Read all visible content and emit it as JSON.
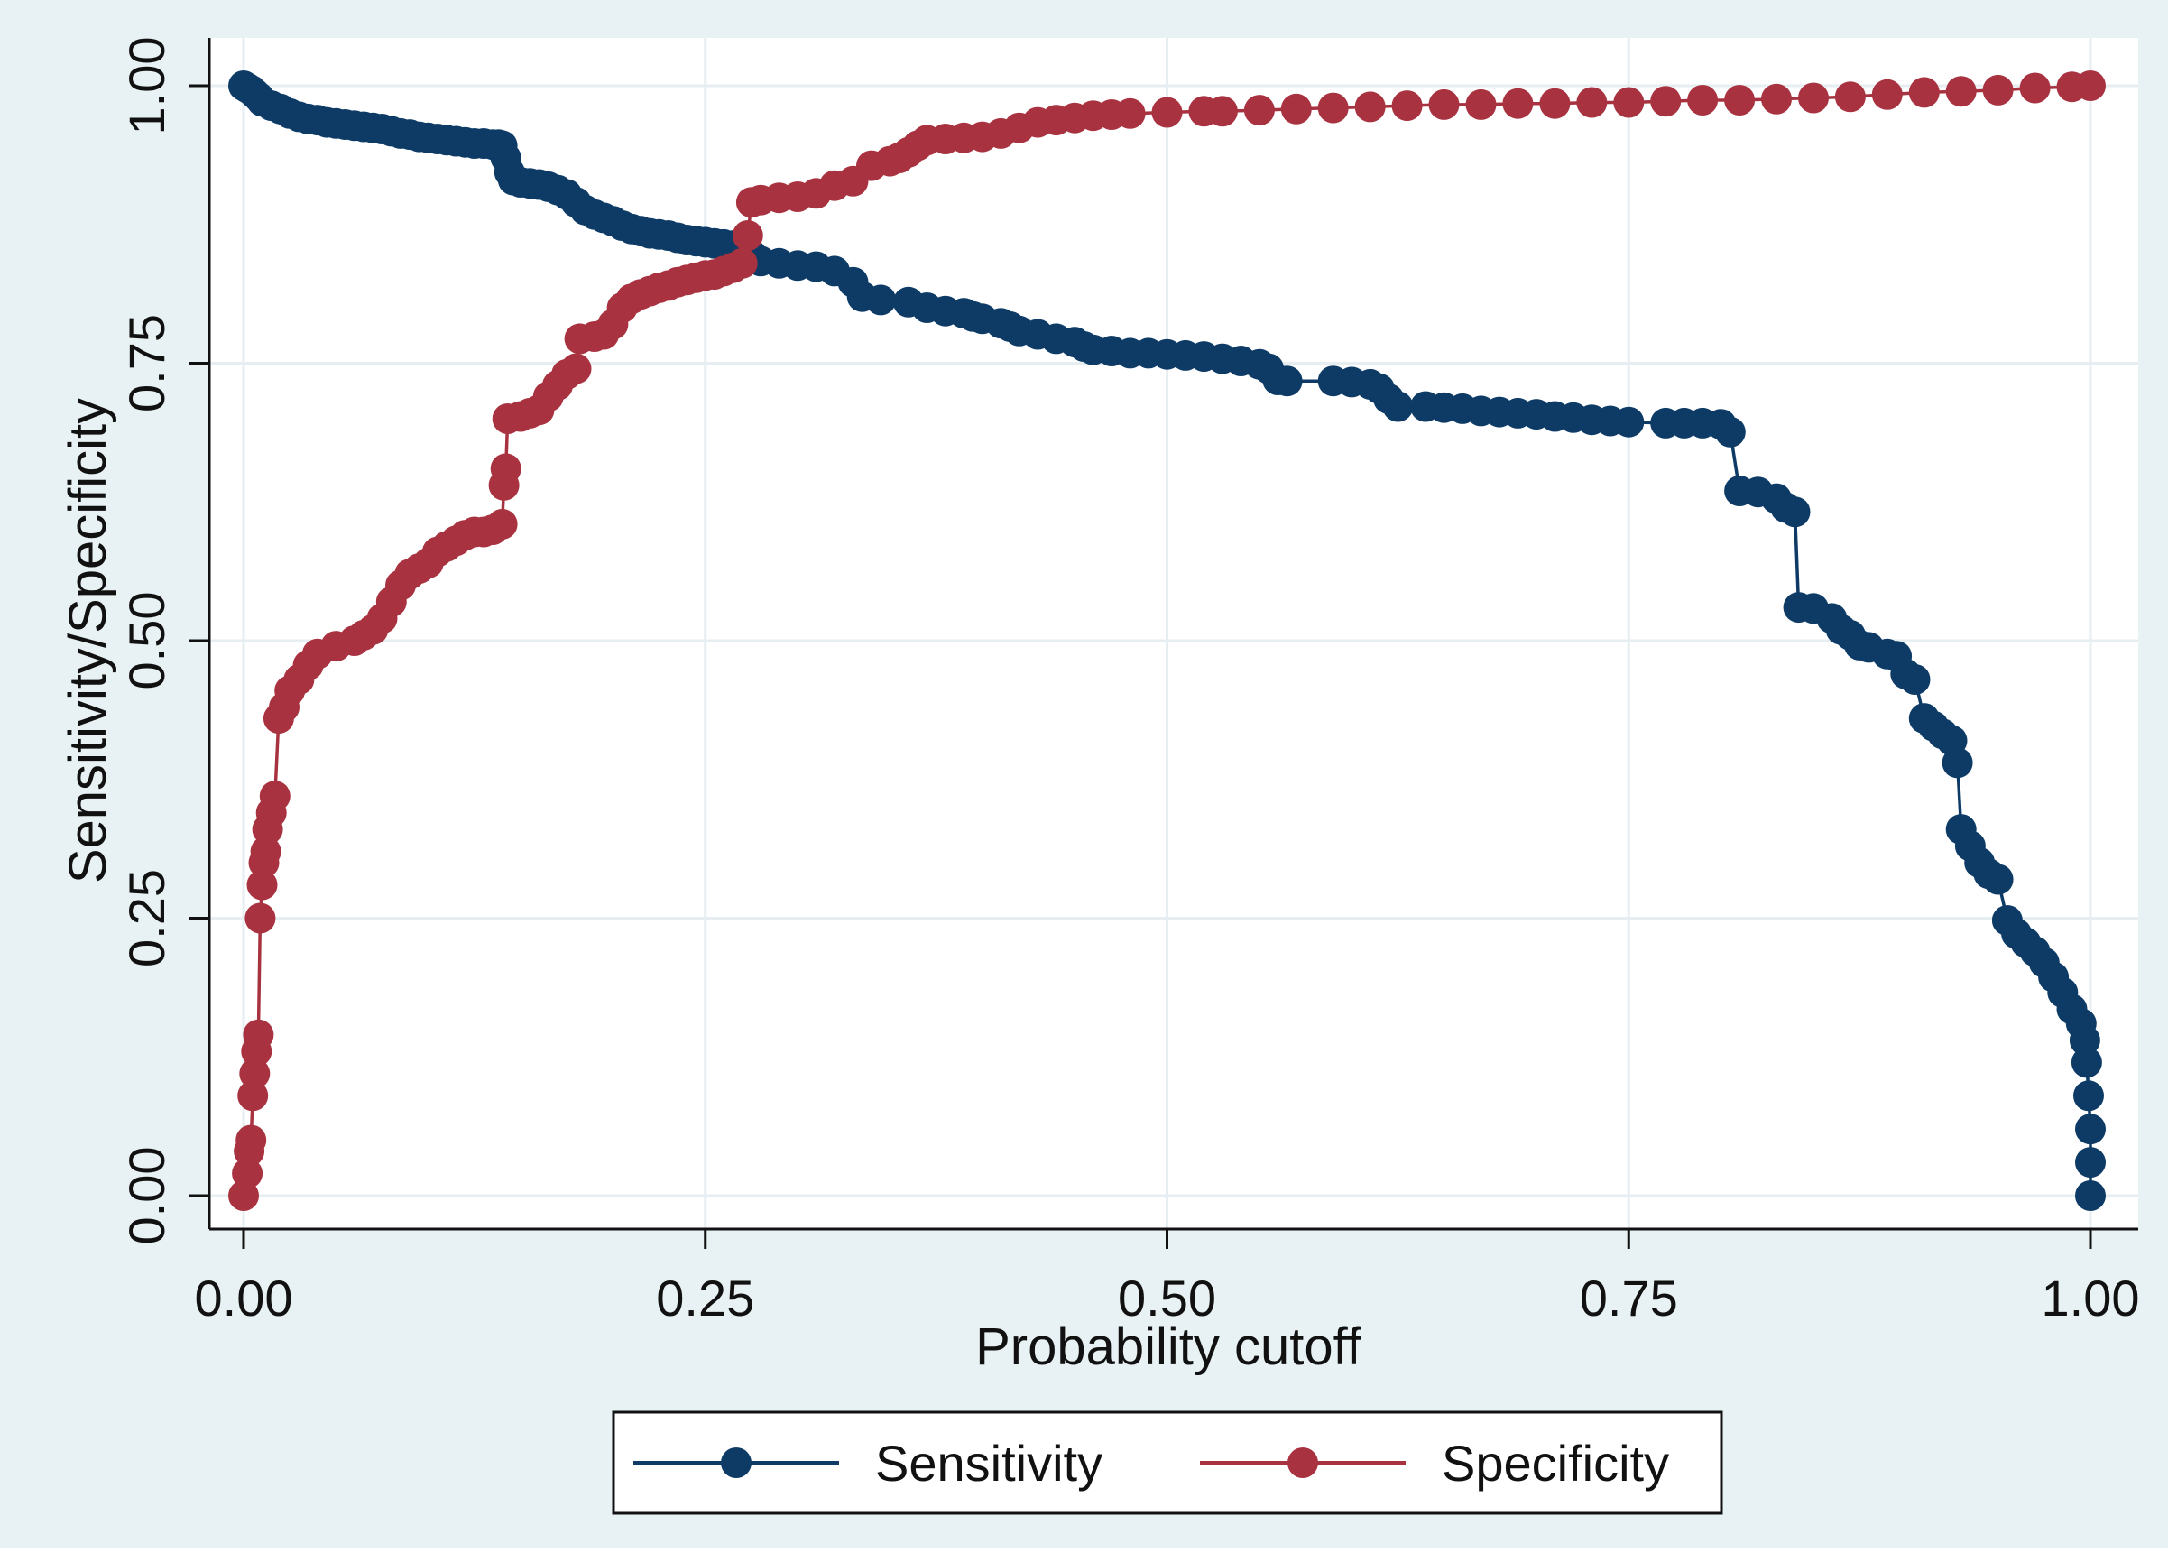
{
  "chart_data": {
    "type": "line",
    "title": "",
    "xlabel": "Probability cutoff",
    "ylabel": "Sensitivity/Specificity",
    "xlim": [
      0,
      1
    ],
    "ylim": [
      0,
      1
    ],
    "x_ticks": [
      0,
      0.25,
      0.5,
      0.75,
      1
    ],
    "x_tick_labels": [
      "0.00",
      "0.25",
      "0.50",
      "0.75",
      "1.00"
    ],
    "y_ticks": [
      0,
      0.25,
      0.5,
      0.75,
      1
    ],
    "y_tick_labels": [
      "0.00",
      "0.25",
      "0.50",
      "0.75",
      "1.00"
    ],
    "grid": true,
    "legend_position": "bottom",
    "colors": {
      "outer_background": "#e8f1f3",
      "plot_background": "#ffffff",
      "grid": "#e6eef1",
      "axis": "#111111"
    },
    "series": [
      {
        "name": "Sensitivity",
        "color": "#0d3b66",
        "points": [
          [
            0.0,
            1.0
          ],
          [
            0.002,
            0.998
          ],
          [
            0.004,
            0.996
          ],
          [
            0.006,
            0.993
          ],
          [
            0.008,
            0.99
          ],
          [
            0.01,
            0.986
          ],
          [
            0.015,
            0.982
          ],
          [
            0.02,
            0.979
          ],
          [
            0.025,
            0.975
          ],
          [
            0.03,
            0.972
          ],
          [
            0.035,
            0.97
          ],
          [
            0.04,
            0.969
          ],
          [
            0.045,
            0.967
          ],
          [
            0.05,
            0.966
          ],
          [
            0.055,
            0.965
          ],
          [
            0.06,
            0.964
          ],
          [
            0.065,
            0.963
          ],
          [
            0.07,
            0.962
          ],
          [
            0.075,
            0.961
          ],
          [
            0.08,
            0.959
          ],
          [
            0.085,
            0.957
          ],
          [
            0.09,
            0.956
          ],
          [
            0.095,
            0.954
          ],
          [
            0.1,
            0.953
          ],
          [
            0.105,
            0.952
          ],
          [
            0.11,
            0.951
          ],
          [
            0.115,
            0.95
          ],
          [
            0.12,
            0.949
          ],
          [
            0.125,
            0.948
          ],
          [
            0.13,
            0.948
          ],
          [
            0.135,
            0.947
          ],
          [
            0.138,
            0.947
          ],
          [
            0.14,
            0.946
          ],
          [
            0.142,
            0.935
          ],
          [
            0.144,
            0.922
          ],
          [
            0.146,
            0.915
          ],
          [
            0.15,
            0.913
          ],
          [
            0.155,
            0.912
          ],
          [
            0.16,
            0.911
          ],
          [
            0.165,
            0.909
          ],
          [
            0.17,
            0.906
          ],
          [
            0.175,
            0.902
          ],
          [
            0.18,
            0.895
          ],
          [
            0.185,
            0.888
          ],
          [
            0.19,
            0.884
          ],
          [
            0.195,
            0.881
          ],
          [
            0.2,
            0.878
          ],
          [
            0.205,
            0.874
          ],
          [
            0.21,
            0.871
          ],
          [
            0.215,
            0.869
          ],
          [
            0.22,
            0.867
          ],
          [
            0.225,
            0.866
          ],
          [
            0.23,
            0.865
          ],
          [
            0.235,
            0.863
          ],
          [
            0.24,
            0.861
          ],
          [
            0.245,
            0.86
          ],
          [
            0.25,
            0.859
          ],
          [
            0.255,
            0.858
          ],
          [
            0.26,
            0.857
          ],
          [
            0.265,
            0.856
          ],
          [
            0.27,
            0.855
          ],
          [
            0.275,
            0.848
          ],
          [
            0.28,
            0.842
          ],
          [
            0.29,
            0.84
          ],
          [
            0.3,
            0.838
          ],
          [
            0.31,
            0.837
          ],
          [
            0.32,
            0.833
          ],
          [
            0.33,
            0.823
          ],
          [
            0.335,
            0.81
          ],
          [
            0.345,
            0.807
          ],
          [
            0.36,
            0.805
          ],
          [
            0.37,
            0.8
          ],
          [
            0.38,
            0.797
          ],
          [
            0.39,
            0.795
          ],
          [
            0.395,
            0.792
          ],
          [
            0.4,
            0.79
          ],
          [
            0.41,
            0.786
          ],
          [
            0.415,
            0.783
          ],
          [
            0.42,
            0.779
          ],
          [
            0.43,
            0.776
          ],
          [
            0.44,
            0.772
          ],
          [
            0.45,
            0.769
          ],
          [
            0.455,
            0.765
          ],
          [
            0.46,
            0.762
          ],
          [
            0.47,
            0.761
          ],
          [
            0.48,
            0.759
          ],
          [
            0.49,
            0.759
          ],
          [
            0.5,
            0.758
          ],
          [
            0.51,
            0.757
          ],
          [
            0.52,
            0.756
          ],
          [
            0.53,
            0.754
          ],
          [
            0.54,
            0.752
          ],
          [
            0.55,
            0.749
          ],
          [
            0.555,
            0.745
          ],
          [
            0.56,
            0.735
          ],
          [
            0.565,
            0.734
          ],
          [
            0.59,
            0.734
          ],
          [
            0.6,
            0.733
          ],
          [
            0.61,
            0.731
          ],
          [
            0.615,
            0.727
          ],
          [
            0.62,
            0.718
          ],
          [
            0.625,
            0.711
          ],
          [
            0.64,
            0.711
          ],
          [
            0.65,
            0.71
          ],
          [
            0.66,
            0.709
          ],
          [
            0.67,
            0.707
          ],
          [
            0.68,
            0.706
          ],
          [
            0.69,
            0.705
          ],
          [
            0.7,
            0.704
          ],
          [
            0.71,
            0.702
          ],
          [
            0.72,
            0.701
          ],
          [
            0.73,
            0.699
          ],
          [
            0.74,
            0.698
          ],
          [
            0.75,
            0.697
          ],
          [
            0.77,
            0.696
          ],
          [
            0.78,
            0.696
          ],
          [
            0.79,
            0.696
          ],
          [
            0.8,
            0.695
          ],
          [
            0.805,
            0.688
          ],
          [
            0.81,
            0.635
          ],
          [
            0.82,
            0.634
          ],
          [
            0.83,
            0.628
          ],
          [
            0.835,
            0.62
          ],
          [
            0.84,
            0.616
          ],
          [
            0.842,
            0.53
          ],
          [
            0.85,
            0.529
          ],
          [
            0.86,
            0.52
          ],
          [
            0.865,
            0.51
          ],
          [
            0.87,
            0.505
          ],
          [
            0.875,
            0.496
          ],
          [
            0.88,
            0.494
          ],
          [
            0.89,
            0.488
          ],
          [
            0.895,
            0.486
          ],
          [
            0.9,
            0.47
          ],
          [
            0.905,
            0.465
          ],
          [
            0.91,
            0.43
          ],
          [
            0.915,
            0.423
          ],
          [
            0.92,
            0.416
          ],
          [
            0.925,
            0.41
          ],
          [
            0.928,
            0.39
          ],
          [
            0.93,
            0.33
          ],
          [
            0.935,
            0.315
          ],
          [
            0.94,
            0.3
          ],
          [
            0.945,
            0.29
          ],
          [
            0.95,
            0.285
          ],
          [
            0.955,
            0.248
          ],
          [
            0.96,
            0.236
          ],
          [
            0.965,
            0.228
          ],
          [
            0.97,
            0.22
          ],
          [
            0.975,
            0.21
          ],
          [
            0.98,
            0.197
          ],
          [
            0.985,
            0.183
          ],
          [
            0.99,
            0.168
          ],
          [
            0.995,
            0.155
          ],
          [
            0.997,
            0.14
          ],
          [
            0.998,
            0.12
          ],
          [
            0.999,
            0.09
          ],
          [
            1.0,
            0.06
          ],
          [
            1.0,
            0.03
          ],
          [
            1.0,
            0.0
          ]
        ]
      },
      {
        "name": "Specificity",
        "color": "#a83240",
        "points": [
          [
            0.0,
            0.0
          ],
          [
            0.002,
            0.02
          ],
          [
            0.003,
            0.04
          ],
          [
            0.004,
            0.05
          ],
          [
            0.005,
            0.09
          ],
          [
            0.006,
            0.11
          ],
          [
            0.007,
            0.13
          ],
          [
            0.008,
            0.145
          ],
          [
            0.009,
            0.25
          ],
          [
            0.01,
            0.28
          ],
          [
            0.011,
            0.3
          ],
          [
            0.012,
            0.31
          ],
          [
            0.013,
            0.33
          ],
          [
            0.015,
            0.345
          ],
          [
            0.017,
            0.36
          ],
          [
            0.019,
            0.43
          ],
          [
            0.022,
            0.44
          ],
          [
            0.025,
            0.455
          ],
          [
            0.03,
            0.465
          ],
          [
            0.035,
            0.478
          ],
          [
            0.04,
            0.488
          ],
          [
            0.05,
            0.495
          ],
          [
            0.06,
            0.5
          ],
          [
            0.065,
            0.505
          ],
          [
            0.07,
            0.51
          ],
          [
            0.075,
            0.52
          ],
          [
            0.08,
            0.535
          ],
          [
            0.085,
            0.55
          ],
          [
            0.09,
            0.56
          ],
          [
            0.095,
            0.565
          ],
          [
            0.1,
            0.57
          ],
          [
            0.105,
            0.58
          ],
          [
            0.11,
            0.585
          ],
          [
            0.115,
            0.59
          ],
          [
            0.12,
            0.595
          ],
          [
            0.125,
            0.598
          ],
          [
            0.13,
            0.598
          ],
          [
            0.135,
            0.6
          ],
          [
            0.14,
            0.605
          ],
          [
            0.141,
            0.64
          ],
          [
            0.142,
            0.655
          ],
          [
            0.143,
            0.7
          ],
          [
            0.15,
            0.702
          ],
          [
            0.155,
            0.705
          ],
          [
            0.16,
            0.708
          ],
          [
            0.165,
            0.72
          ],
          [
            0.17,
            0.73
          ],
          [
            0.175,
            0.74
          ],
          [
            0.18,
            0.745
          ],
          [
            0.182,
            0.772
          ],
          [
            0.19,
            0.774
          ],
          [
            0.195,
            0.776
          ],
          [
            0.2,
            0.785
          ],
          [
            0.205,
            0.8
          ],
          [
            0.21,
            0.808
          ],
          [
            0.215,
            0.812
          ],
          [
            0.22,
            0.815
          ],
          [
            0.225,
            0.818
          ],
          [
            0.23,
            0.82
          ],
          [
            0.235,
            0.823
          ],
          [
            0.24,
            0.825
          ],
          [
            0.245,
            0.827
          ],
          [
            0.25,
            0.829
          ],
          [
            0.255,
            0.83
          ],
          [
            0.26,
            0.833
          ],
          [
            0.265,
            0.836
          ],
          [
            0.27,
            0.84
          ],
          [
            0.273,
            0.865
          ],
          [
            0.275,
            0.895
          ],
          [
            0.28,
            0.897
          ],
          [
            0.29,
            0.899
          ],
          [
            0.3,
            0.9
          ],
          [
            0.31,
            0.903
          ],
          [
            0.32,
            0.91
          ],
          [
            0.33,
            0.914
          ],
          [
            0.34,
            0.928
          ],
          [
            0.35,
            0.932
          ],
          [
            0.355,
            0.935
          ],
          [
            0.36,
            0.94
          ],
          [
            0.365,
            0.946
          ],
          [
            0.37,
            0.951
          ],
          [
            0.38,
            0.952
          ],
          [
            0.39,
            0.953
          ],
          [
            0.4,
            0.954
          ],
          [
            0.41,
            0.957
          ],
          [
            0.42,
            0.962
          ],
          [
            0.43,
            0.967
          ],
          [
            0.44,
            0.969
          ],
          [
            0.45,
            0.971
          ],
          [
            0.46,
            0.973
          ],
          [
            0.47,
            0.974
          ],
          [
            0.48,
            0.975
          ],
          [
            0.5,
            0.976
          ],
          [
            0.52,
            0.977
          ],
          [
            0.53,
            0.977
          ],
          [
            0.55,
            0.978
          ],
          [
            0.57,
            0.979
          ],
          [
            0.59,
            0.98
          ],
          [
            0.61,
            0.981
          ],
          [
            0.63,
            0.982
          ],
          [
            0.65,
            0.983
          ],
          [
            0.67,
            0.983
          ],
          [
            0.69,
            0.984
          ],
          [
            0.71,
            0.984
          ],
          [
            0.73,
            0.985
          ],
          [
            0.75,
            0.985
          ],
          [
            0.77,
            0.986
          ],
          [
            0.79,
            0.987
          ],
          [
            0.81,
            0.987
          ],
          [
            0.83,
            0.988
          ],
          [
            0.85,
            0.989
          ],
          [
            0.87,
            0.99
          ],
          [
            0.89,
            0.992
          ],
          [
            0.91,
            0.994
          ],
          [
            0.93,
            0.995
          ],
          [
            0.95,
            0.996
          ],
          [
            0.97,
            0.998
          ],
          [
            0.99,
            0.999
          ],
          [
            1.0,
            1.0
          ]
        ]
      }
    ]
  }
}
